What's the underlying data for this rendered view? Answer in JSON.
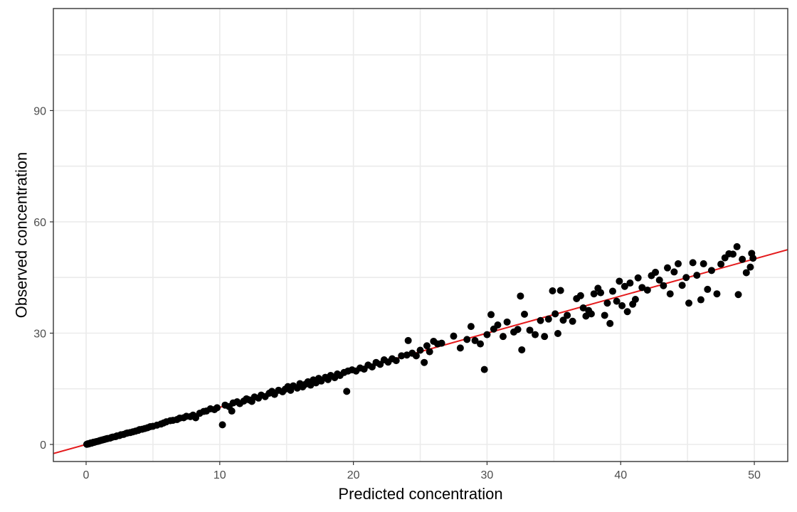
{
  "chart_data": {
    "type": "scatter",
    "xlabel": "Predicted concentration",
    "ylabel": "Observed concentration",
    "xlim": [
      -2.45,
      52.5
    ],
    "ylim": [
      -4.6,
      117.5
    ],
    "x_ticks": [
      0,
      10,
      20,
      30,
      40,
      50
    ],
    "y_ticks": [
      0,
      30,
      60,
      90
    ],
    "x_tick_labels": [
      "0",
      "10",
      "20",
      "30",
      "40",
      "50"
    ],
    "y_tick_labels": [
      "0",
      "30",
      "60",
      "90"
    ],
    "grid": true,
    "fit_line": {
      "intercept": 0,
      "slope": 1.0,
      "color": "#e41a1c"
    },
    "point_color": "#000000",
    "points": [
      [
        0.05,
        0.05
      ],
      [
        0.1,
        0.1
      ],
      [
        0.15,
        0.2
      ],
      [
        0.2,
        0.15
      ],
      [
        0.3,
        0.3
      ],
      [
        0.35,
        0.4
      ],
      [
        0.4,
        0.35
      ],
      [
        0.5,
        0.5
      ],
      [
        0.55,
        0.6
      ],
      [
        0.6,
        0.55
      ],
      [
        0.7,
        0.7
      ],
      [
        0.8,
        0.8
      ],
      [
        0.9,
        0.85
      ],
      [
        1.0,
        1.0
      ],
      [
        1.1,
        1.1
      ],
      [
        1.2,
        1.2
      ],
      [
        1.3,
        1.3
      ],
      [
        1.4,
        1.4
      ],
      [
        1.5,
        1.5
      ],
      [
        1.6,
        1.6
      ],
      [
        1.8,
        1.7
      ],
      [
        1.9,
        1.9
      ],
      [
        2.0,
        2.0
      ],
      [
        2.2,
        2.1
      ],
      [
        2.3,
        2.3
      ],
      [
        2.5,
        2.4
      ],
      [
        2.6,
        2.6
      ],
      [
        2.8,
        2.7
      ],
      [
        3.0,
        3.0
      ],
      [
        3.1,
        3.1
      ],
      [
        3.3,
        3.2
      ],
      [
        3.5,
        3.4
      ],
      [
        3.7,
        3.6
      ],
      [
        3.9,
        3.8
      ],
      [
        4.0,
        4.0
      ],
      [
        4.2,
        4.1
      ],
      [
        4.4,
        4.3
      ],
      [
        4.6,
        4.5
      ],
      [
        4.8,
        4.8
      ],
      [
        5.0,
        4.9
      ],
      [
        5.3,
        5.2
      ],
      [
        5.6,
        5.5
      ],
      [
        5.8,
        5.8
      ],
      [
        6.0,
        6.1
      ],
      [
        6.3,
        6.4
      ],
      [
        6.5,
        6.5
      ],
      [
        6.8,
        6.7
      ],
      [
        7.0,
        7.1
      ],
      [
        7.3,
        7.2
      ],
      [
        7.5,
        7.6
      ],
      [
        7.8,
        7.5
      ],
      [
        8.0,
        7.9
      ],
      [
        8.2,
        7.2
      ],
      [
        8.5,
        8.4
      ],
      [
        8.8,
        8.9
      ],
      [
        9.0,
        9.0
      ],
      [
        9.3,
        9.6
      ],
      [
        9.6,
        9.4
      ],
      [
        9.8,
        9.9
      ],
      [
        10.2,
        5.3
      ],
      [
        10.4,
        10.6
      ],
      [
        10.7,
        10.2
      ],
      [
        10.9,
        9.0
      ],
      [
        11.0,
        11.2
      ],
      [
        11.3,
        11.5
      ],
      [
        11.5,
        11.0
      ],
      [
        11.8,
        11.7
      ],
      [
        12.0,
        12.3
      ],
      [
        12.2,
        12.0
      ],
      [
        12.4,
        11.6
      ],
      [
        12.6,
        12.8
      ],
      [
        12.9,
        12.5
      ],
      [
        13.1,
        13.3
      ],
      [
        13.4,
        12.9
      ],
      [
        13.7,
        13.8
      ],
      [
        13.9,
        14.3
      ],
      [
        14.1,
        13.5
      ],
      [
        14.4,
        14.6
      ],
      [
        14.7,
        14.2
      ],
      [
        14.9,
        14.9
      ],
      [
        15.1,
        15.6
      ],
      [
        15.3,
        14.6
      ],
      [
        15.5,
        15.8
      ],
      [
        15.8,
        15.2
      ],
      [
        16.0,
        16.4
      ],
      [
        16.2,
        15.5
      ],
      [
        16.4,
        16.2
      ],
      [
        16.6,
        16.9
      ],
      [
        16.8,
        16.0
      ],
      [
        17.0,
        17.4
      ],
      [
        17.2,
        16.6
      ],
      [
        17.4,
        17.8
      ],
      [
        17.6,
        17.1
      ],
      [
        17.9,
        18.1
      ],
      [
        18.1,
        17.5
      ],
      [
        18.3,
        18.6
      ],
      [
        18.6,
        18.0
      ],
      [
        18.8,
        19.0
      ],
      [
        19.0,
        18.6
      ],
      [
        19.3,
        19.4
      ],
      [
        19.5,
        14.3
      ],
      [
        19.6,
        19.8
      ],
      [
        19.9,
        20.1
      ],
      [
        20.2,
        19.8
      ],
      [
        20.5,
        20.6
      ],
      [
        20.8,
        20.3
      ],
      [
        21.1,
        21.4
      ],
      [
        21.4,
        20.9
      ],
      [
        21.7,
        22.1
      ],
      [
        22.0,
        21.6
      ],
      [
        22.3,
        22.8
      ],
      [
        22.6,
        22.2
      ],
      [
        22.9,
        23.1
      ],
      [
        23.2,
        22.6
      ],
      [
        23.6,
        23.9
      ],
      [
        24.0,
        24.1
      ],
      [
        24.1,
        28.0
      ],
      [
        24.4,
        24.6
      ],
      [
        24.7,
        23.9
      ],
      [
        25.0,
        25.4
      ],
      [
        25.3,
        22.1
      ],
      [
        25.5,
        26.6
      ],
      [
        25.7,
        25.0
      ],
      [
        26.0,
        27.8
      ],
      [
        26.3,
        27.1
      ],
      [
        26.6,
        27.3
      ],
      [
        27.5,
        29.2
      ],
      [
        28.0,
        26.0
      ],
      [
        28.5,
        28.3
      ],
      [
        28.8,
        31.8
      ],
      [
        29.1,
        28.0
      ],
      [
        29.5,
        27.1
      ],
      [
        29.8,
        20.2
      ],
      [
        30.0,
        29.6
      ],
      [
        30.3,
        35.0
      ],
      [
        30.5,
        31.1
      ],
      [
        30.8,
        32.2
      ],
      [
        31.2,
        29.1
      ],
      [
        31.5,
        33.0
      ],
      [
        32.0,
        30.3
      ],
      [
        32.3,
        31.0
      ],
      [
        32.5,
        40.0
      ],
      [
        32.6,
        25.5
      ],
      [
        32.8,
        35.1
      ],
      [
        33.2,
        30.8
      ],
      [
        33.6,
        29.6
      ],
      [
        34.0,
        33.4
      ],
      [
        34.3,
        29.1
      ],
      [
        34.6,
        33.8
      ],
      [
        34.9,
        41.4
      ],
      [
        35.1,
        35.2
      ],
      [
        35.3,
        29.9
      ],
      [
        35.5,
        41.5
      ],
      [
        35.7,
        33.5
      ],
      [
        36.0,
        34.8
      ],
      [
        36.4,
        33.2
      ],
      [
        36.7,
        39.3
      ],
      [
        37.0,
        40.1
      ],
      [
        37.2,
        36.8
      ],
      [
        37.4,
        34.6
      ],
      [
        37.6,
        36.1
      ],
      [
        37.8,
        35.2
      ],
      [
        38.0,
        40.6
      ],
      [
        38.3,
        42.1
      ],
      [
        38.5,
        40.9
      ],
      [
        38.8,
        34.8
      ],
      [
        39.0,
        38.1
      ],
      [
        39.2,
        32.6
      ],
      [
        39.4,
        41.3
      ],
      [
        39.7,
        38.6
      ],
      [
        39.9,
        44.0
      ],
      [
        40.1,
        37.4
      ],
      [
        40.3,
        42.6
      ],
      [
        40.5,
        35.8
      ],
      [
        40.7,
        43.5
      ],
      [
        40.9,
        37.8
      ],
      [
        41.1,
        39.1
      ],
      [
        41.3,
        44.9
      ],
      [
        41.6,
        42.3
      ],
      [
        42.0,
        41.6
      ],
      [
        42.3,
        45.5
      ],
      [
        42.6,
        46.4
      ],
      [
        42.9,
        44.3
      ],
      [
        43.2,
        42.8
      ],
      [
        43.5,
        47.6
      ],
      [
        43.7,
        40.6
      ],
      [
        44.0,
        46.5
      ],
      [
        44.3,
        48.7
      ],
      [
        44.6,
        42.9
      ],
      [
        44.9,
        45.0
      ],
      [
        45.1,
        38.1
      ],
      [
        45.4,
        49.0
      ],
      [
        45.7,
        45.6
      ],
      [
        46.0,
        39.0
      ],
      [
        46.2,
        48.7
      ],
      [
        46.5,
        41.8
      ],
      [
        46.8,
        46.9
      ],
      [
        47.2,
        40.6
      ],
      [
        47.5,
        48.6
      ],
      [
        47.8,
        50.3
      ],
      [
        48.1,
        51.4
      ],
      [
        48.4,
        51.3
      ],
      [
        48.7,
        53.3
      ],
      [
        48.8,
        40.4
      ],
      [
        49.1,
        49.9
      ],
      [
        49.4,
        46.3
      ],
      [
        49.7,
        47.8
      ],
      [
        49.8,
        51.5
      ],
      [
        49.9,
        50.2
      ]
    ]
  }
}
